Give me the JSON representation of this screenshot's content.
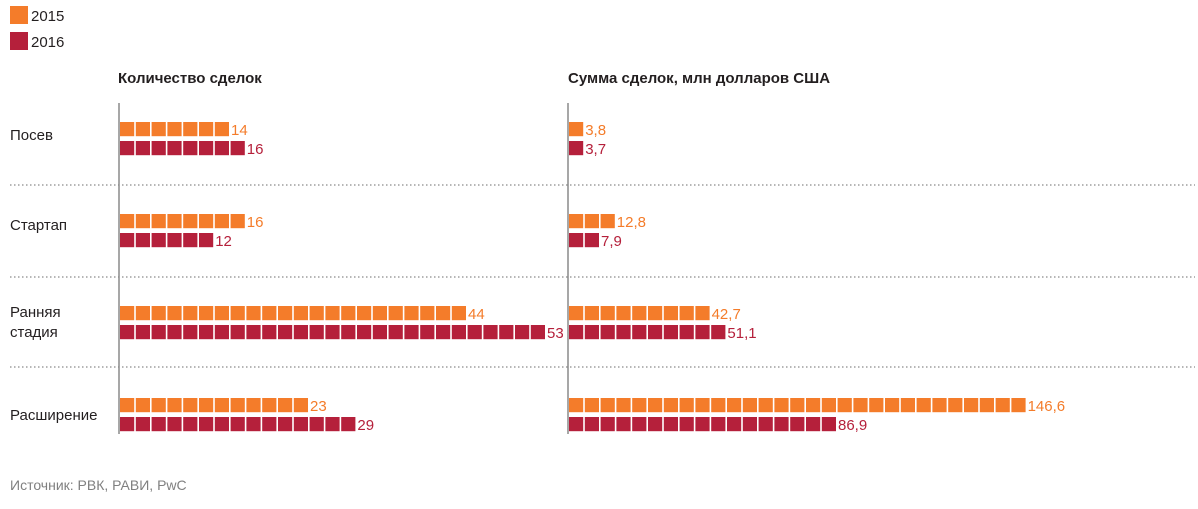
{
  "chart_data": {
    "type": "bar",
    "legend": {
      "placement": "top-left",
      "items": [
        {
          "name": "2015",
          "color": "#f47c2a"
        },
        {
          "name": "2016",
          "color": "#b5203b"
        }
      ]
    },
    "categories": [
      "Посев",
      "Стартап",
      "Ранняя стадия",
      "Расширение"
    ],
    "category_lines": [
      [
        "Посев"
      ],
      [
        "Стартап"
      ],
      [
        "Ранняя",
        "стадия"
      ],
      [
        "Расширение"
      ]
    ],
    "panels": [
      {
        "title": "Количество сделок",
        "unit_per_square": 2,
        "series": [
          {
            "name": "2015",
            "values": [
              14,
              16,
              44,
              23
            ],
            "labels": [
              "14",
              "16",
              "44",
              "23"
            ]
          },
          {
            "name": "2016",
            "values": [
              16,
              12,
              53,
              29
            ],
            "labels": [
              "16",
              "12",
              "53",
              "29"
            ]
          }
        ]
      },
      {
        "title": "Сумма сделок, млн долларов США",
        "unit_per_square": 5,
        "series": [
          {
            "name": "2015",
            "values": [
              3.8,
              12.8,
              42.7,
              146.6
            ],
            "labels": [
              "3,8",
              "12,8",
              "42,7",
              "146,6"
            ]
          },
          {
            "name": "2016",
            "values": [
              3.7,
              7.9,
              51.1,
              86.9
            ],
            "labels": [
              "3,7",
              "7,9",
              "51,1",
              "86,9"
            ]
          }
        ]
      }
    ],
    "source": "Источник: РВК, РАВИ, PwC"
  }
}
